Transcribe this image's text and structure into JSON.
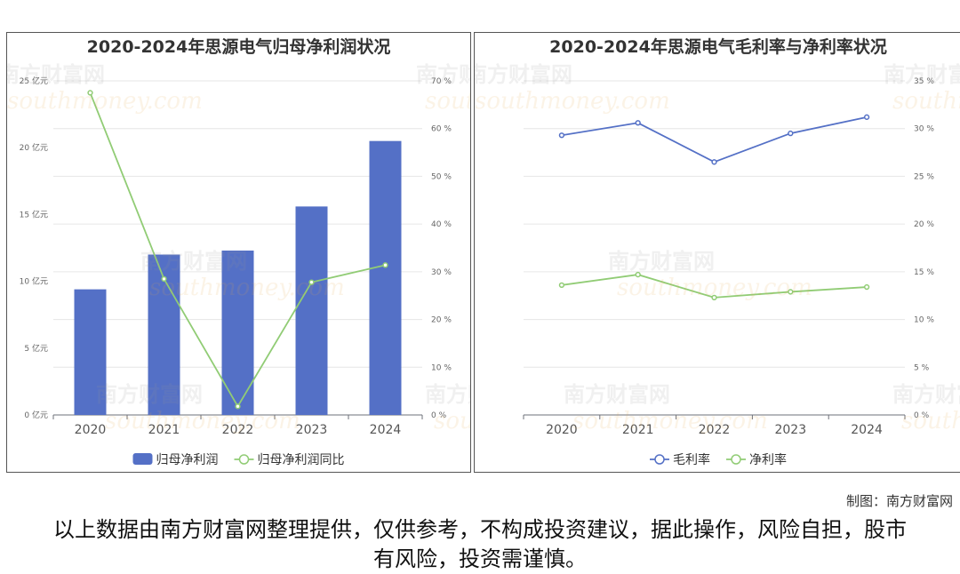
{
  "credit": "制图：南方财富网",
  "disclaimer": "以上数据由南方财富网整理提供，仅供参考，不构成投资建议，据此操作，风险自担，股市有风险，投资需谨慎。",
  "watermark": {
    "cn": "南方财富网",
    "en": "southmoney.com"
  },
  "chart_data": [
    {
      "type": "bar",
      "title": "2020-2024年思源电气归母净利润状况",
      "categories": [
        "2020",
        "2021",
        "2022",
        "2023",
        "2024"
      ],
      "series": [
        {
          "name": "归母净利润",
          "type": "bar",
          "axis": "left",
          "color": "#5470c6",
          "values": [
            9.4,
            12.0,
            12.3,
            15.6,
            20.5
          ]
        },
        {
          "name": "归母净利润同比",
          "type": "line",
          "axis": "right",
          "color": "#91cc75",
          "values": [
            67.5,
            28.5,
            1.8,
            27.8,
            31.4
          ]
        }
      ],
      "y_left": {
        "ylim": [
          0,
          25
        ],
        "ticks": [
          0,
          5,
          10,
          15,
          20,
          25
        ],
        "unit": "亿元",
        "tick_labels": [
          "0 亿元",
          "5 亿元",
          "10 亿元",
          "15 亿元",
          "20 亿元",
          "25 亿元"
        ]
      },
      "y_right": {
        "ylim": [
          0,
          70
        ],
        "ticks": [
          0,
          10,
          20,
          30,
          40,
          50,
          60,
          70
        ],
        "unit": "%",
        "tick_labels": [
          "0 %",
          "10 %",
          "20 %",
          "30 %",
          "40 %",
          "50 %",
          "60 %",
          "70 %"
        ]
      },
      "grid": true,
      "legend_position": "bottom"
    },
    {
      "type": "line",
      "title": "2020-2024年思源电气毛利率与净利率状况",
      "categories": [
        "2020",
        "2021",
        "2022",
        "2023",
        "2024"
      ],
      "series": [
        {
          "name": "毛利率",
          "color": "#5470c6",
          "values": [
            29.3,
            30.6,
            26.5,
            29.5,
            31.2
          ]
        },
        {
          "name": "净利率",
          "color": "#91cc75",
          "values": [
            13.6,
            14.7,
            12.3,
            12.9,
            13.4
          ]
        }
      ],
      "y_right": {
        "ylim": [
          0,
          35
        ],
        "ticks": [
          0,
          5,
          10,
          15,
          20,
          25,
          30,
          35
        ],
        "unit": "%",
        "tick_labels": [
          "0 %",
          "5 %",
          "10 %",
          "15 %",
          "20 %",
          "25 %",
          "30 %",
          "35 %"
        ]
      },
      "grid": true,
      "legend_position": "bottom"
    }
  ]
}
